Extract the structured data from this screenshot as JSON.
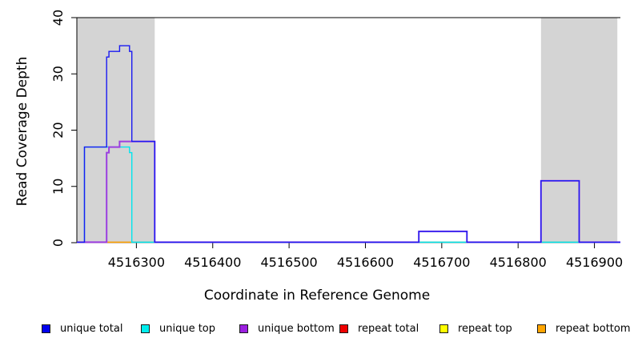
{
  "chart_data": {
    "type": "line",
    "title": "",
    "xlabel": "Coordinate in Reference Genome",
    "ylabel": "Read Coverage Depth",
    "xlim": [
      4516222,
      4516934
    ],
    "ylim": [
      0,
      40
    ],
    "x_ticks": [
      4516300,
      4516400,
      4516500,
      4516600,
      4516700,
      4516800,
      4516900
    ],
    "y_ticks": [
      0,
      10,
      20,
      30,
      40
    ],
    "grid": false,
    "legend_position": "bottom",
    "shaded_repeat_regions": [
      {
        "from": 4516222,
        "to": 4516324
      },
      {
        "from": 4516830,
        "to": 4516930
      }
    ],
    "series": [
      {
        "name": "unique top",
        "color": "#00E5EE",
        "width": 1.4,
        "points": [
          [
            4516222,
            0
          ],
          [
            4516232,
            0
          ],
          [
            4516232,
            17
          ],
          [
            4516291,
            17
          ],
          [
            4516291,
            16
          ],
          [
            4516294,
            16
          ],
          [
            4516294,
            0
          ],
          [
            4516934,
            0
          ]
        ]
      },
      {
        "name": "unique bottom",
        "color": "#9B3FE0",
        "width": 2,
        "points": [
          [
            4516222,
            0
          ],
          [
            4516261,
            0
          ],
          [
            4516261,
            16
          ],
          [
            4516264,
            16
          ],
          [
            4516264,
            17
          ],
          [
            4516278,
            17
          ],
          [
            4516278,
            18
          ],
          [
            4516324,
            18
          ],
          [
            4516324,
            0
          ],
          [
            4516670,
            0
          ],
          [
            4516670,
            2
          ],
          [
            4516733,
            2
          ],
          [
            4516733,
            0
          ],
          [
            4516830,
            0
          ],
          [
            4516830,
            11
          ],
          [
            4516880,
            11
          ],
          [
            4516880,
            0
          ],
          [
            4516934,
            0
          ]
        ]
      },
      {
        "name": "unique total",
        "color": "#1A1AF2",
        "width": 1.4,
        "points": [
          [
            4516222,
            0
          ],
          [
            4516232,
            0
          ],
          [
            4516232,
            17
          ],
          [
            4516261,
            17
          ],
          [
            4516261,
            33
          ],
          [
            4516264,
            33
          ],
          [
            4516264,
            34
          ],
          [
            4516278,
            34
          ],
          [
            4516278,
            35
          ],
          [
            4516291,
            35
          ],
          [
            4516291,
            34
          ],
          [
            4516294,
            34
          ],
          [
            4516294,
            18
          ],
          [
            4516324,
            18
          ],
          [
            4516324,
            0
          ],
          [
            4516670,
            0
          ],
          [
            4516670,
            2
          ],
          [
            4516733,
            2
          ],
          [
            4516733,
            0
          ],
          [
            4516830,
            0
          ],
          [
            4516830,
            11
          ],
          [
            4516880,
            11
          ],
          [
            4516880,
            0
          ],
          [
            4516934,
            0
          ]
        ]
      }
    ],
    "baseline_segments": [
      {
        "name": "unique-bottom-baseline",
        "color": "#9F8DF0",
        "from": 4516222,
        "to": 4516934
      },
      {
        "name": "repeat-total-baseline",
        "color": "#D0507C",
        "from": 4516232,
        "to": 4516262
      },
      {
        "name": "repeat-bottom-baseline",
        "color": "#FFA500",
        "from": 4516262,
        "to": 4516293
      },
      {
        "name": "repeat-top-baseline",
        "color": "#7CCC7C",
        "from": 4516293,
        "to": 4516324
      },
      {
        "name": "repeat-top-baseline-2",
        "color": "#7CCC7C",
        "from": 4516670,
        "to": 4516879
      }
    ],
    "legend": [
      {
        "label": "unique total",
        "color": "#0000EE"
      },
      {
        "label": "unique top",
        "color": "#00EEEE"
      },
      {
        "label": "unique bottom",
        "color": "#9B1FE0"
      },
      {
        "label": "repeat total",
        "color": "#EE0000"
      },
      {
        "label": "repeat top",
        "color": "#FFFF00"
      },
      {
        "label": "repeat bottom",
        "color": "#FFA500"
      }
    ],
    "shade_color": "#D4D4D4"
  }
}
